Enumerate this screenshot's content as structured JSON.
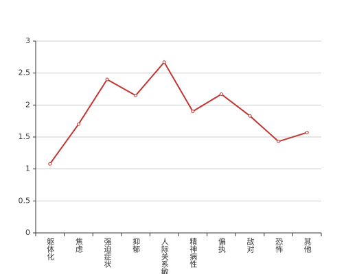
{
  "chart_data": {
    "type": "line",
    "categories": [
      "躯体化",
      "焦虑",
      "强迫症状",
      "抑郁",
      "人际关系敏感",
      "精神病性",
      "偏执",
      "敌对",
      "恐怖",
      "其他"
    ],
    "values": [
      1.08,
      1.7,
      2.4,
      2.15,
      2.67,
      1.9,
      2.17,
      1.83,
      1.43,
      1.57
    ],
    "color": "#c23531",
    "ylim": [
      0,
      3
    ],
    "yticks": [
      0,
      0.5,
      1,
      1.5,
      2,
      2.5,
      3
    ],
    "grid": true
  }
}
